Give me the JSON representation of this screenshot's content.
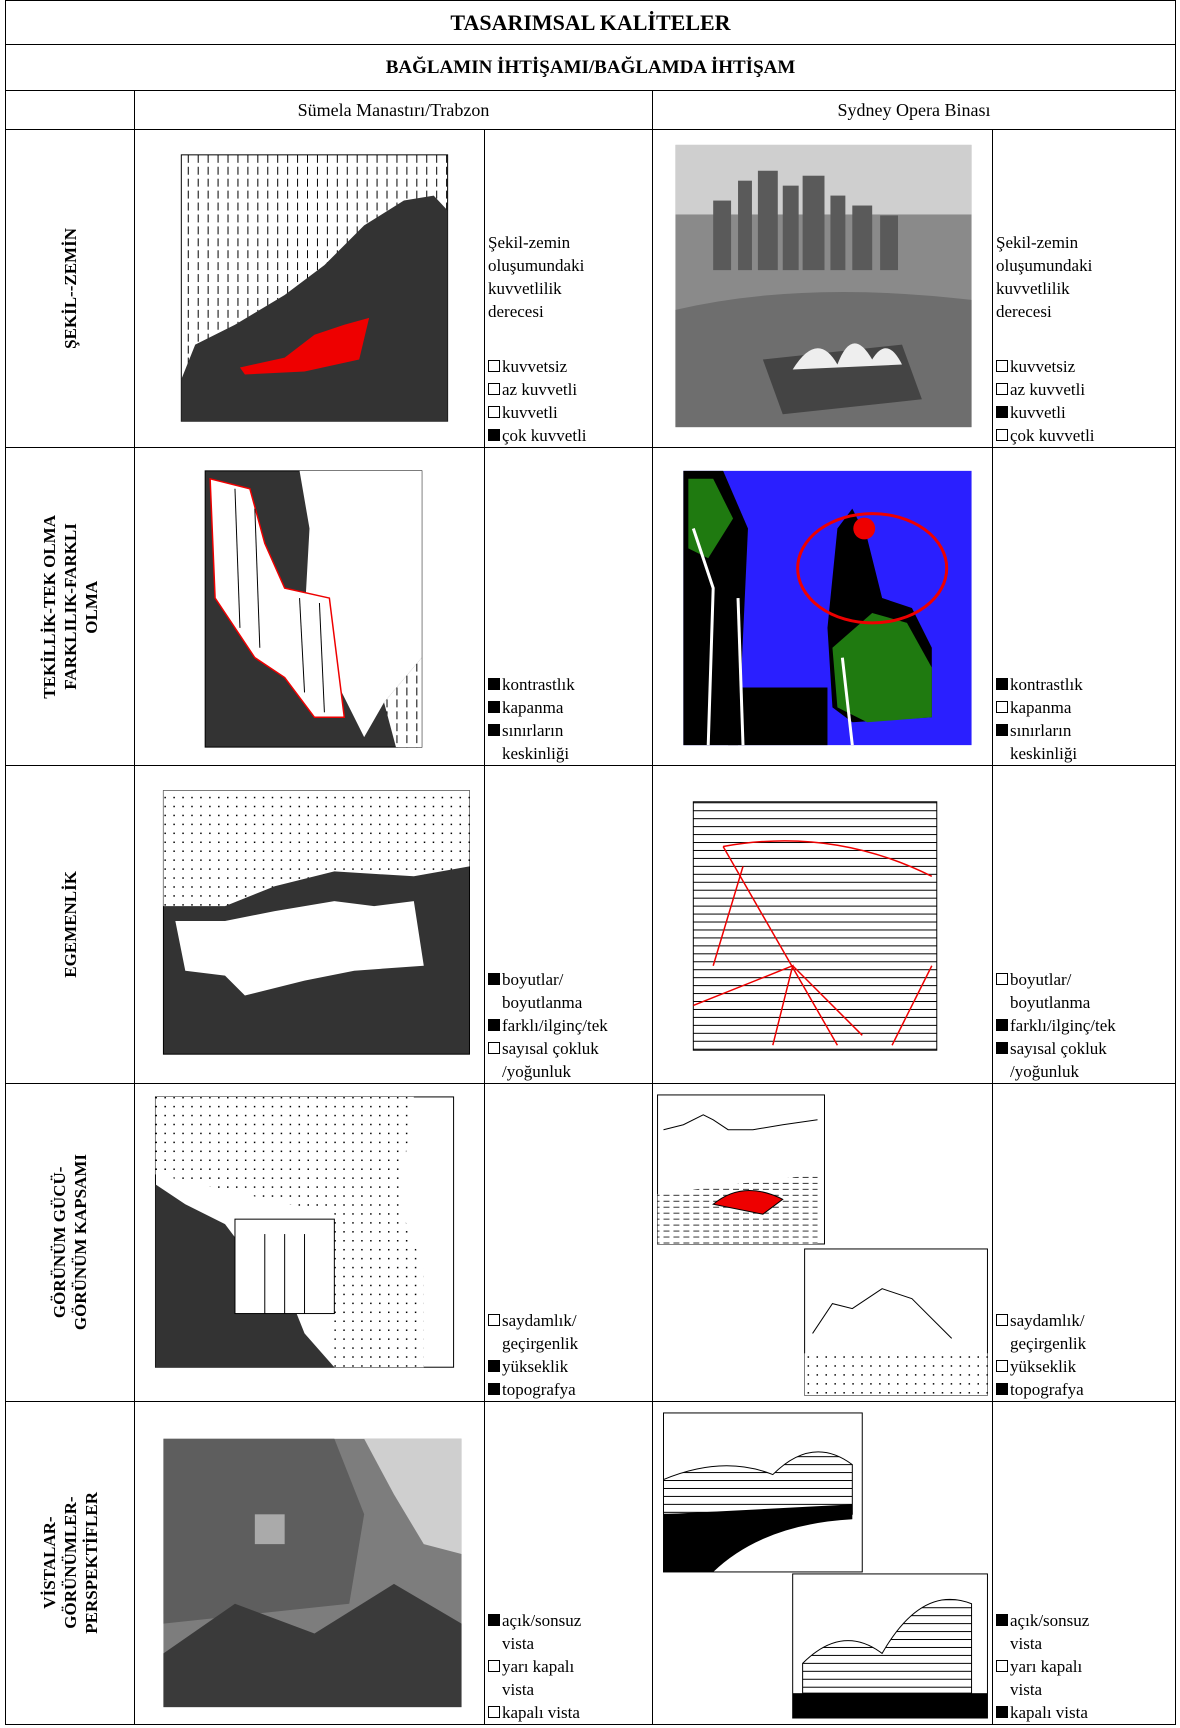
{
  "header": {
    "title": "TASARIMSAL KALİTELER",
    "subtitle": "BAĞLAMIN İHTİŞAMI/BAĞLAMDA  İHTİŞAM"
  },
  "columns": [
    "Sümela Manastırı/Trabzon",
    "Sydney Opera Binası"
  ],
  "rows": [
    {
      "label": [
        "ŞEKİL--ZEMİN"
      ],
      "left": {
        "intro": "Şekil-zemin\noluşumundaki\nkuvvetlilik\nderecesi",
        "options": [
          {
            "text": "kuvvetsiz",
            "checked": false
          },
          {
            "text": "az kuvvetli",
            "checked": false
          },
          {
            "text": "kuvvetli",
            "checked": false
          },
          {
            "text": "çok kuvvetli",
            "checked": true
          }
        ]
      },
      "right": {
        "intro": "Şekil-zemin\noluşumundaki\nkuvvetlilik\nderecesi",
        "options": [
          {
            "text": "kuvvetsiz",
            "checked": false
          },
          {
            "text": "az kuvvetli",
            "checked": false
          },
          {
            "text": "kuvvetli",
            "checked": true
          },
          {
            "text": "çok kuvvetli",
            "checked": false
          }
        ]
      }
    },
    {
      "label": [
        "TEKİLLİK-TEK OLMA",
        "FARKLILIK-FARKLI",
        "OLMA"
      ],
      "left": {
        "options": [
          {
            "text": "kontrastlık",
            "checked": true
          },
          {
            "text": "kapanma",
            "checked": true
          },
          {
            "text": "sınırların\nkeskinliği",
            "checked": true
          }
        ]
      },
      "right": {
        "options": [
          {
            "text": "kontrastlık",
            "checked": true
          },
          {
            "text": "kapanma",
            "checked": false
          },
          {
            "text": "sınırların\nkeskinliği",
            "checked": true
          }
        ]
      }
    },
    {
      "label": [
        "EGEMENLİK"
      ],
      "left": {
        "options": [
          {
            "text": "boyutlar/\nboyutlanma",
            "checked": true
          },
          {
            "text": "farklı/ilginç/tek",
            "checked": true
          },
          {
            "text": "sayısal çokluk\n/yoğunluk",
            "checked": false
          }
        ]
      },
      "right": {
        "options": [
          {
            "text": "boyutlar/\nboyutlanma",
            "checked": false
          },
          {
            "text": "farklı/ilginç/tek",
            "checked": true
          },
          {
            "text": "sayısal çokluk\n/yoğunluk",
            "checked": true
          }
        ]
      }
    },
    {
      "label": [
        "GÖRÜNÜM GÜCÜ-",
        "GÖRÜNÜM KAPSAMI"
      ],
      "left": {
        "options": [
          {
            "text": "saydamlık/\ngeçirgenlik",
            "checked": false
          },
          {
            "text": "yükseklik",
            "checked": true
          },
          {
            "text": "topografya",
            "checked": true
          }
        ]
      },
      "right": {
        "options": [
          {
            "text": "saydamlık/\ngeçirgenlik",
            "checked": false
          },
          {
            "text": "yükseklik",
            "checked": false
          },
          {
            "text": "topografya",
            "checked": true
          }
        ]
      }
    },
    {
      "label": [
        "VİSTALAR-",
        "GÖRÜNÜMLER-",
        "PERSPEKTİFLER"
      ],
      "left": {
        "options": [
          {
            "text": "açık/sonsuz\nvista",
            "checked": true
          },
          {
            "text": "yarı kapalı\nvista",
            "checked": false
          },
          {
            "text": "kapalı vista",
            "checked": false
          }
        ]
      },
      "right": {
        "options": [
          {
            "text": "açık/sonsuz\nvista",
            "checked": true
          },
          {
            "text": "yarı kapalı\nvista",
            "checked": false
          },
          {
            "text": "kapalı vista",
            "checked": true
          }
        ]
      }
    }
  ]
}
